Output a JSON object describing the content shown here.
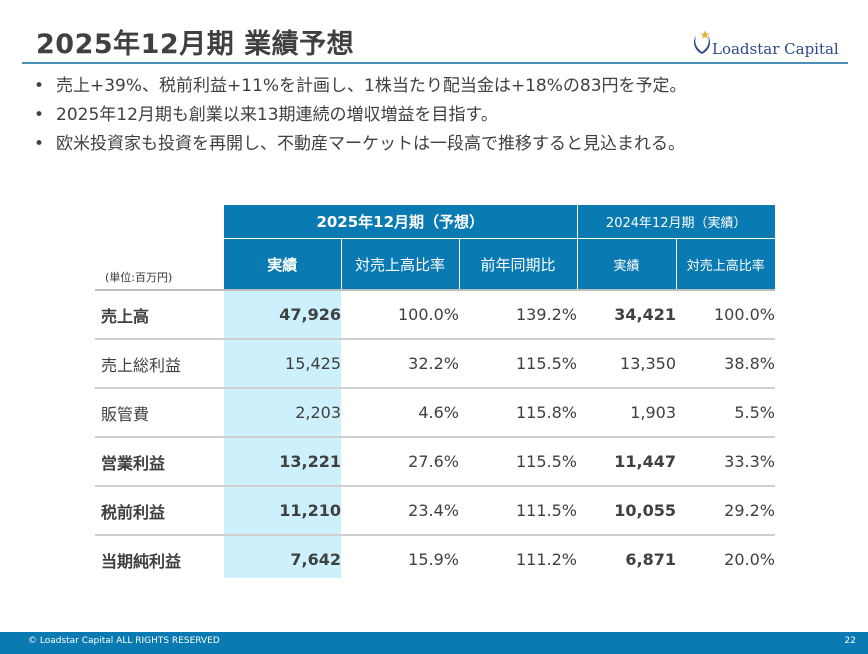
{
  "slide": {
    "title": "2025年12月期 業績予想",
    "logo_text": "Loadstar Capital",
    "bullets": [
      "売上+39%、税前利益+11%を計画し、1株当たり配当金は+18%の83円を予定。",
      "2025年12月期も創業以来13期連続の増収増益を目指す。",
      "欧米投資家も投資を再開し、不動産マーケットは一段高で推移すると見込まれる。"
    ],
    "bullet_mark": "•"
  },
  "table": {
    "group_forecast": "2025年12月期（予想）",
    "group_actual": "2024年12月期（実績）",
    "unit": "(単位:百万円)",
    "col_forecast": [
      "実績",
      "対売上高比率",
      "前年同期比"
    ],
    "col_actual": [
      "実績",
      "対売上高比率"
    ],
    "rows": [
      {
        "label": "売上高",
        "f_value": "47,926",
        "f_ratio": "100.0%",
        "f_yoy": "139.2%",
        "a_value": "34,421",
        "a_ratio": "100.0%"
      },
      {
        "label": "売上総利益",
        "f_value": "15,425",
        "f_ratio": "32.2%",
        "f_yoy": "115.5%",
        "a_value": "13,350",
        "a_ratio": "38.8%"
      },
      {
        "label": "販管費",
        "f_value": "2,203",
        "f_ratio": "4.6%",
        "f_yoy": "115.8%",
        "a_value": "1,903",
        "a_ratio": "5.5%"
      },
      {
        "label": "営業利益",
        "f_value": "13,221",
        "f_ratio": "27.6%",
        "f_yoy": "115.5%",
        "a_value": "11,447",
        "a_ratio": "33.3%"
      },
      {
        "label": "税前利益",
        "f_value": "11,210",
        "f_ratio": "23.4%",
        "f_yoy": "111.5%",
        "a_value": "10,055",
        "a_ratio": "29.2%"
      },
      {
        "label": "当期純利益",
        "f_value": "7,642",
        "f_ratio": "15.9%",
        "f_yoy": "111.2%",
        "a_value": "6,871",
        "a_ratio": "20.0%"
      }
    ]
  },
  "footer": {
    "copyright": "© Loadstar Capital ALL RIGHTS RESERVED",
    "page": "22"
  },
  "colors": {
    "header_blue": "#0a7ab2",
    "highlight": "#cdf1fc",
    "title_text": "#404040"
  }
}
